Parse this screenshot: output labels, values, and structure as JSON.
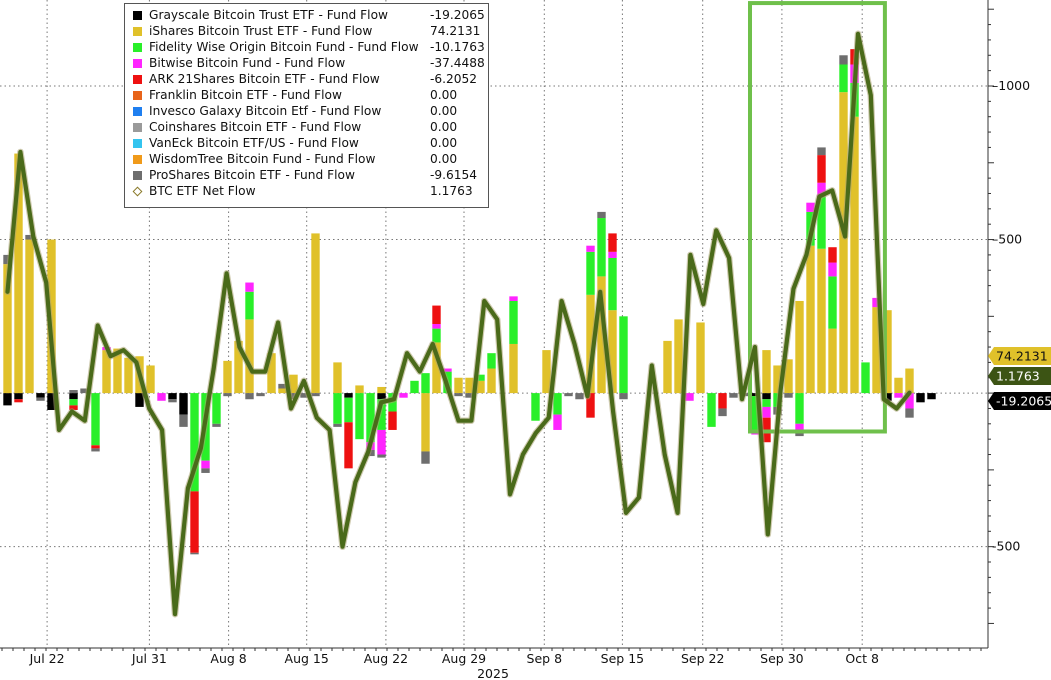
{
  "chart_data": {
    "type": "bar",
    "stacked": true,
    "ylim": [
      -830,
      1280
    ],
    "yticks": [
      -500,
      0,
      500,
      1000
    ],
    "ytick_labels": [
      "-500",
      "",
      "500",
      "1000"
    ],
    "grid": "dotted horizontal and vertical",
    "xtick_labels": [
      "Jul 22",
      "Jul 31",
      "Aug 8",
      "Aug 15",
      "Aug 22",
      "Aug 29",
      "Sep 8",
      "Sep 15",
      "Sep 22",
      "Sep 30",
      "Oct 8"
    ],
    "xtick_positions": [
      3.6,
      12.9,
      20.1,
      27.2,
      34.4,
      41.5,
      48.8,
      55.9,
      63.2,
      70.4,
      77.7
    ],
    "year_label": "2025",
    "highlight_box": {
      "from_index": 68,
      "to_index": 79,
      "y_low": -125,
      "y_high": 1270,
      "color": "#6fc04b"
    },
    "series": [
      {
        "name": "Grayscale Bitcoin Trust ETF - Fund Flow",
        "color": "#000000",
        "legend_value": "-19.2065",
        "values": [
          -40,
          -20,
          0,
          -15,
          -55,
          0,
          -20,
          0,
          0,
          0,
          0,
          0,
          -45,
          0,
          0,
          -20,
          -70,
          0,
          0,
          0,
          0,
          0,
          0,
          0,
          0,
          0,
          0,
          0,
          0,
          0,
          0,
          -15,
          0,
          0,
          -20,
          0,
          0,
          0,
          0,
          0,
          0,
          0,
          0,
          0,
          0,
          0,
          0,
          0,
          0,
          0,
          0,
          0,
          0,
          0,
          0,
          0,
          0,
          0,
          0,
          0,
          0,
          0,
          0,
          0,
          0,
          0,
          0,
          0,
          -10,
          -20,
          0,
          0,
          0,
          0,
          0,
          0,
          0,
          0,
          0,
          0,
          -25,
          0,
          0,
          -30,
          -20
        ]
      },
      {
        "name": "iShares Bitcoin Trust ETF - Fund Flow",
        "color": "#e0c12a",
        "legend_value": "74.2131",
        "values": [
          420,
          780,
          500,
          0,
          500,
          0,
          0,
          0,
          0,
          140,
          145,
          115,
          120,
          90,
          0,
          0,
          0,
          0,
          0,
          0,
          105,
          170,
          240,
          0,
          130,
          15,
          60,
          0,
          520,
          0,
          100,
          0,
          25,
          0,
          20,
          0,
          0,
          0,
          -190,
          165,
          0,
          50,
          50,
          40,
          80,
          0,
          160,
          0,
          0,
          140,
          0,
          0,
          0,
          320,
          380,
          270,
          0,
          0,
          0,
          0,
          170,
          240,
          0,
          230,
          0,
          0,
          0,
          0,
          0,
          140,
          90,
          110,
          300,
          480,
          470,
          210,
          980,
          900,
          0,
          280,
          270,
          50,
          80
        ]
      },
      {
        "name": "Fidelity Wise Origin Bitcoin Fund - Fund Flow",
        "color": "#29ef29",
        "legend_value": "-10.1763",
        "values": [
          0,
          0,
          0,
          0,
          0,
          0,
          -20,
          0,
          -170,
          0,
          0,
          0,
          0,
          0,
          0,
          0,
          0,
          -320,
          -220,
          -100,
          0,
          0,
          90,
          0,
          0,
          0,
          0,
          0,
          0,
          0,
          -100,
          -80,
          -150,
          -160,
          -100,
          -60,
          0,
          40,
          65,
          45,
          70,
          0,
          0,
          20,
          50,
          0,
          140,
          0,
          -90,
          0,
          -70,
          0,
          0,
          140,
          190,
          170,
          250,
          0,
          0,
          0,
          0,
          0,
          0,
          0,
          -110,
          0,
          0,
          0,
          -110,
          -25,
          -45,
          0,
          -100,
          110,
          170,
          170,
          90,
          110,
          100,
          0,
          0,
          0,
          0
        ]
      },
      {
        "name": "Bitwise Bitcoin Fund - Fund Flow",
        "color": "#ff24ff",
        "legend_value": "-37.4488",
        "values": [
          0,
          0,
          0,
          0,
          0,
          0,
          0,
          0,
          0,
          10,
          0,
          0,
          0,
          0,
          -25,
          0,
          0,
          0,
          -25,
          0,
          0,
          0,
          30,
          0,
          0,
          0,
          0,
          0,
          0,
          0,
          0,
          0,
          0,
          -25,
          -80,
          0,
          -15,
          0,
          0,
          15,
          10,
          0,
          0,
          0,
          0,
          0,
          15,
          0,
          0,
          0,
          -50,
          0,
          0,
          20,
          0,
          20,
          0,
          0,
          0,
          0,
          0,
          0,
          -25,
          0,
          0,
          0,
          0,
          0,
          -15,
          -35,
          0,
          0,
          -30,
          30,
          45,
          45,
          0,
          60,
          0,
          30,
          0,
          -15,
          -50
        ]
      },
      {
        "name": "ARK 21Shares Bitcoin ETF - Fund Flow",
        "color": "#ee1111",
        "legend_value": "-6.2052",
        "values": [
          0,
          -10,
          0,
          0,
          0,
          0,
          -15,
          0,
          -10,
          0,
          0,
          0,
          0,
          0,
          0,
          0,
          0,
          -200,
          0,
          0,
          0,
          0,
          0,
          0,
          0,
          0,
          0,
          0,
          0,
          0,
          0,
          -150,
          0,
          0,
          0,
          -60,
          0,
          0,
          0,
          60,
          0,
          0,
          0,
          0,
          0,
          0,
          0,
          0,
          0,
          0,
          0,
          0,
          0,
          -80,
          0,
          60,
          0,
          0,
          0,
          0,
          0,
          0,
          0,
          0,
          0,
          -50,
          0,
          0,
          0,
          -80,
          0,
          0,
          0,
          0,
          90,
          50,
          0,
          50,
          0,
          0,
          0,
          0,
          0
        ]
      },
      {
        "name": "Franklin Bitcoin ETF - Fund Flow",
        "color": "#e8641a",
        "legend_value": "0.00",
        "values": []
      },
      {
        "name": "Invesco Galaxy Bitcoin Etf - Fund Flow",
        "color": "#1f7ff0",
        "legend_value": "0.00",
        "values": []
      },
      {
        "name": "Coinshares Bitcoin ETF - Fund Flow",
        "color": "#9a9a9a",
        "legend_value": "0.00",
        "values": []
      },
      {
        "name": "VanEck Bitcoin ETF/US - Fund Flow",
        "color": "#33c4ef",
        "legend_value": "0.00",
        "values": []
      },
      {
        "name": "WisdomTree Bitcoin Fund - Fund Flow",
        "color": "#f09a1a",
        "legend_value": "0.00",
        "values": []
      },
      {
        "name": "ProShares Bitcoin ETF - Fund Flow",
        "color": "#6e6e6e",
        "legend_value": "-9.6154",
        "values": [
          30,
          0,
          15,
          -10,
          0,
          0,
          10,
          15,
          -10,
          0,
          0,
          0,
          0,
          0,
          0,
          -10,
          -40,
          -5,
          -15,
          -10,
          -10,
          0,
          -20,
          -10,
          0,
          15,
          -20,
          -15,
          -10,
          0,
          -10,
          0,
          0,
          -20,
          -10,
          0,
          0,
          0,
          -40,
          0,
          0,
          -10,
          -15,
          0,
          0,
          0,
          0,
          0,
          0,
          0,
          0,
          -10,
          -20,
          0,
          20,
          0,
          -20,
          0,
          0,
          0,
          0,
          0,
          0,
          0,
          0,
          -25,
          -15,
          -10,
          0,
          0,
          -25,
          -15,
          -10,
          0,
          25,
          0,
          30,
          0,
          0,
          0,
          0,
          0,
          -30
        ]
      }
    ],
    "net_flow": {
      "name": "BTC ETF Net Flow",
      "legend_value": "1.1763",
      "color": "#4a6a1a",
      "values": [
        330,
        785,
        510,
        360,
        -120,
        -60,
        -90,
        220,
        120,
        140,
        100,
        -50,
        -120,
        -720,
        -310,
        -180,
        80,
        390,
        150,
        70,
        70,
        230,
        -50,
        40,
        -80,
        -120,
        -500,
        -290,
        -190,
        -30,
        -20,
        130,
        70,
        160,
        40,
        -90,
        -90,
        300,
        240,
        -330,
        -200,
        -130,
        -80,
        300,
        160,
        -10,
        330,
        -60,
        -390,
        -340,
        90,
        -200,
        -390,
        450,
        290,
        530,
        440,
        -20,
        150,
        -460,
        10,
        340,
        450,
        640,
        660,
        510,
        1170,
        970,
        -20,
        -50,
        1.18
      ],
      "x_offset": 0
    },
    "right_labels": [
      {
        "text": "74.2131",
        "value": 74.2131,
        "bg": "#e0c12a",
        "fg": "#111111"
      },
      {
        "text": "1.1763",
        "value": 1.1763,
        "bg": "#3c5414",
        "fg": "#ffffff"
      },
      {
        "text": "-19.2065",
        "value": -19.2065,
        "bg": "#000000",
        "fg": "#ffffff"
      }
    ]
  }
}
